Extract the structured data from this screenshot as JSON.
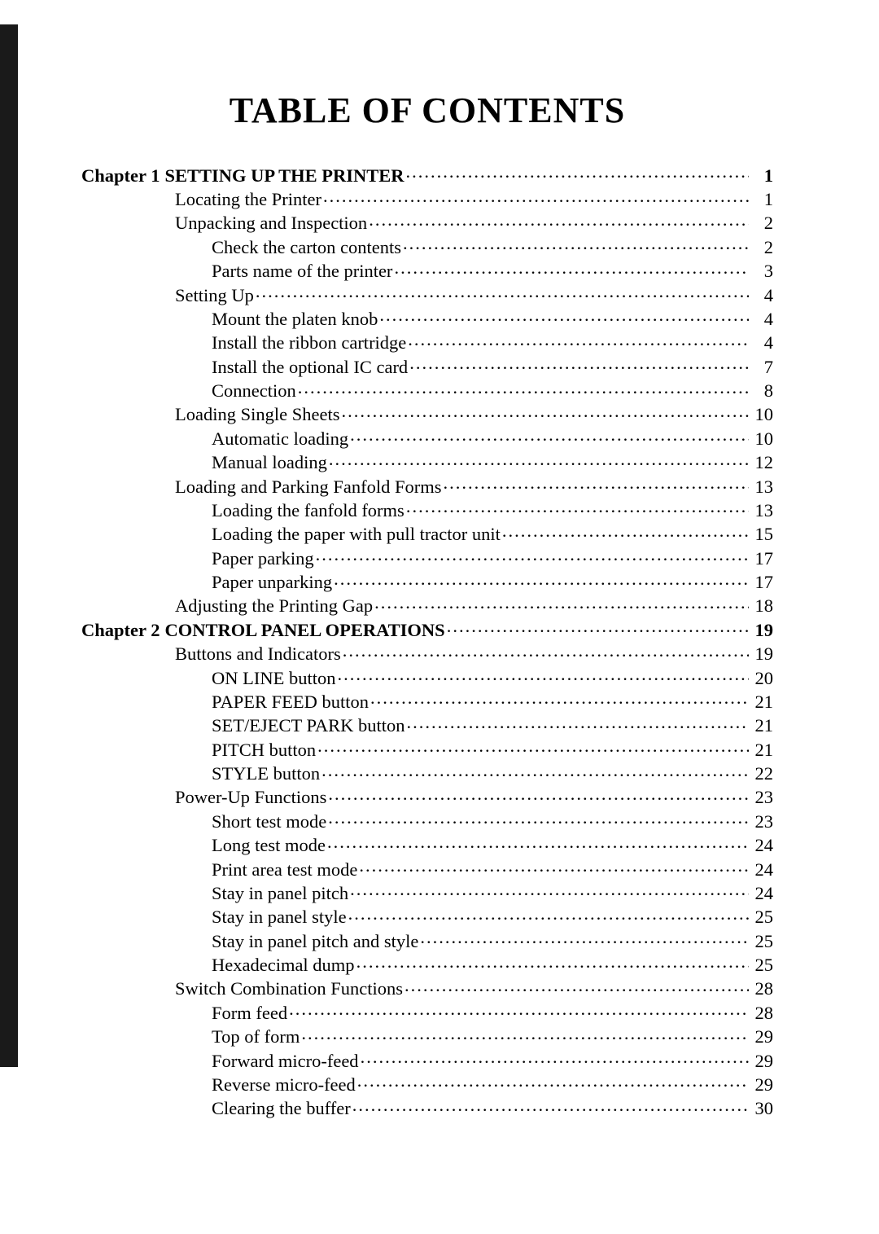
{
  "title": "TABLE OF CONTENTS",
  "typography": {
    "title_fontsize_pt": 33,
    "body_fontsize_pt": 17,
    "font_family": "Times New Roman",
    "color_text": "#000000",
    "color_bg": "#ffffff"
  },
  "entries": [
    {
      "level": 0,
      "chapter_label": "Chapter 1",
      "text": "SETTING UP THE PRINTER",
      "page": "1",
      "bold": true
    },
    {
      "level": 1,
      "text": "Locating the Printer",
      "page": "1"
    },
    {
      "level": 1,
      "text": "Unpacking and Inspection",
      "page": "2"
    },
    {
      "level": 2,
      "text": "Check the carton contents",
      "page": "2"
    },
    {
      "level": 2,
      "text": "Parts name of the printer",
      "page": "3"
    },
    {
      "level": 1,
      "text": "Setting Up",
      "page": "4"
    },
    {
      "level": 2,
      "text": "Mount the platen knob",
      "page": "4"
    },
    {
      "level": 2,
      "text": "Install the ribbon cartridge",
      "page": "4"
    },
    {
      "level": 2,
      "text": "Install the optional IC card",
      "page": "7"
    },
    {
      "level": 2,
      "text": "Connection",
      "page": "8"
    },
    {
      "level": 1,
      "text": "Loading Single Sheets",
      "page": "10"
    },
    {
      "level": 2,
      "text": "Automatic loading",
      "page": "10"
    },
    {
      "level": 2,
      "text": "Manual loading",
      "page": "12"
    },
    {
      "level": 1,
      "text": "Loading and Parking Fanfold Forms",
      "page": "13"
    },
    {
      "level": 2,
      "text": "Loading the fanfold forms",
      "page": "13"
    },
    {
      "level": 2,
      "text": "Loading the paper with pull tractor unit",
      "page": "15"
    },
    {
      "level": 2,
      "text": "Paper parking",
      "page": "17"
    },
    {
      "level": 2,
      "text": "Paper unparking",
      "page": "17"
    },
    {
      "level": 1,
      "text": "Adjusting the Printing Gap",
      "page": "18"
    },
    {
      "level": 0,
      "chapter_label": "Chapter 2",
      "text": "CONTROL PANEL OPERATIONS",
      "page": "19",
      "bold": true
    },
    {
      "level": 1,
      "text": "Buttons and Indicators",
      "page": "19"
    },
    {
      "level": 2,
      "text": "ON LINE button",
      "page": "20"
    },
    {
      "level": 2,
      "text": "PAPER FEED button",
      "page": "21"
    },
    {
      "level": 2,
      "text": "SET/EJECT PARK button",
      "page": "21"
    },
    {
      "level": 2,
      "text": "PITCH button",
      "page": "21"
    },
    {
      "level": 2,
      "text": "STYLE button",
      "page": "22"
    },
    {
      "level": 1,
      "text": "Power-Up Functions",
      "page": "23"
    },
    {
      "level": 2,
      "text": "Short test mode",
      "page": "23"
    },
    {
      "level": 2,
      "text": "Long test mode",
      "page": "24"
    },
    {
      "level": 2,
      "text": "Print area test mode",
      "page": "24"
    },
    {
      "level": 2,
      "text": "Stay in panel pitch",
      "page": "24"
    },
    {
      "level": 2,
      "text": "Stay in panel style",
      "page": "25"
    },
    {
      "level": 2,
      "text": "Stay in panel pitch and style",
      "page": "25"
    },
    {
      "level": 2,
      "text": "Hexadecimal dump",
      "page": "25"
    },
    {
      "level": 1,
      "text": "Switch Combination Functions",
      "page": "28"
    },
    {
      "level": 2,
      "text": "Form feed",
      "page": "28"
    },
    {
      "level": 2,
      "text": "Top of form",
      "page": "29"
    },
    {
      "level": 2,
      "text": "Forward micro-feed",
      "page": "29"
    },
    {
      "level": 2,
      "text": "Reverse micro-feed",
      "page": "29"
    },
    {
      "level": 2,
      "text": "Clearing the buffer",
      "page": "30"
    }
  ]
}
